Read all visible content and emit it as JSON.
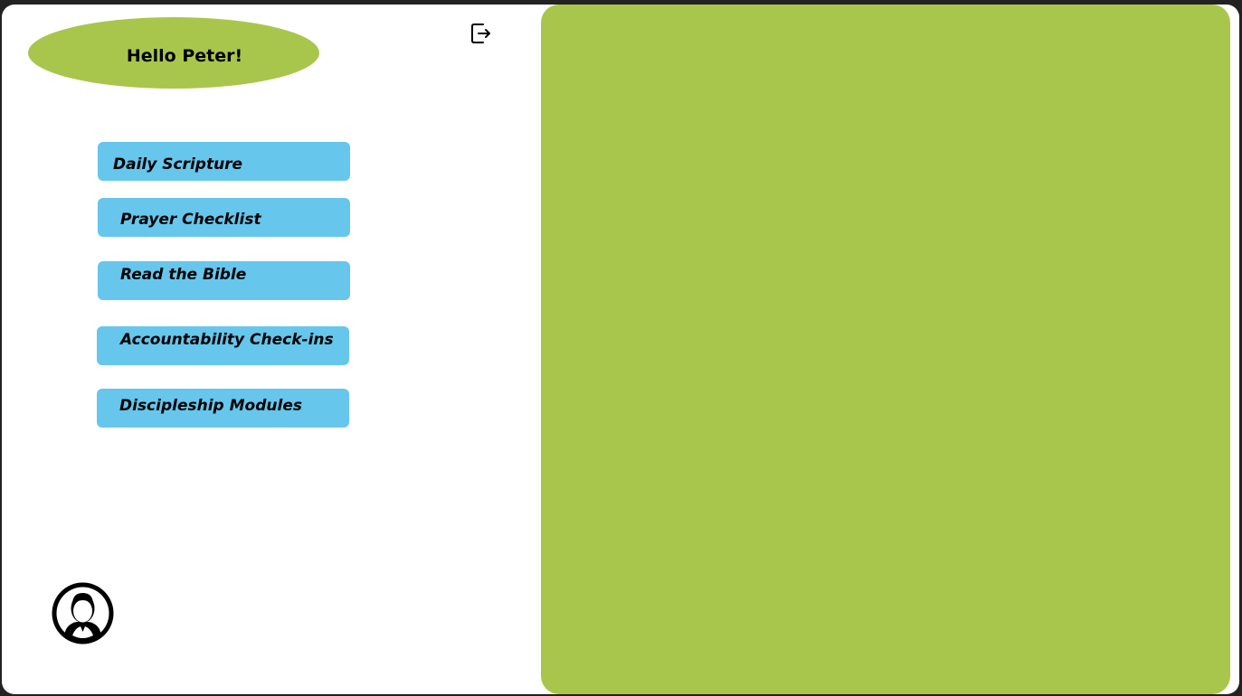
{
  "greeting": "Hello Peter!",
  "menu": {
    "items": [
      {
        "label": "Daily Scripture"
      },
      {
        "label": "Prayer Checklist"
      },
      {
        "label": "Read the Bible"
      },
      {
        "label": "Accountability Check-ins"
      },
      {
        "label": "Discipleship Modules"
      }
    ]
  },
  "icons": {
    "logout": "logout-icon",
    "avatar": "user-avatar-icon"
  },
  "colors": {
    "accent_green": "#a9c64c",
    "button_blue": "#66c6ec",
    "frame_background": "#222222",
    "page_background": "#ffffff"
  }
}
